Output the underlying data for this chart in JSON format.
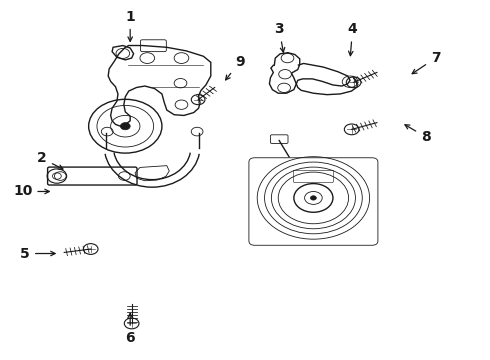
{
  "bg_color": "#ffffff",
  "line_color": "#1a1a1a",
  "lw_main": 1.0,
  "lw_thin": 0.6,
  "label_fontsize": 10,
  "label_fontweight": "bold",
  "labels": [
    {
      "text": "1",
      "xt": 0.265,
      "yt": 0.955,
      "xa": 0.265,
      "ya": 0.875
    },
    {
      "text": "2",
      "xt": 0.085,
      "yt": 0.56,
      "xa": 0.135,
      "ya": 0.525
    },
    {
      "text": "3",
      "xt": 0.57,
      "yt": 0.92,
      "xa": 0.58,
      "ya": 0.845
    },
    {
      "text": "4",
      "xt": 0.72,
      "yt": 0.92,
      "xa": 0.715,
      "ya": 0.835
    },
    {
      "text": "5",
      "xt": 0.05,
      "yt": 0.295,
      "xa": 0.12,
      "ya": 0.295
    },
    {
      "text": "6",
      "xt": 0.265,
      "yt": 0.06,
      "xa": 0.265,
      "ya": 0.14
    },
    {
      "text": "7",
      "xt": 0.89,
      "yt": 0.84,
      "xa": 0.835,
      "ya": 0.79
    },
    {
      "text": "8",
      "xt": 0.87,
      "yt": 0.62,
      "xa": 0.82,
      "ya": 0.66
    },
    {
      "text": "9",
      "xt": 0.49,
      "yt": 0.83,
      "xa": 0.455,
      "ya": 0.77
    },
    {
      "text": "10",
      "xt": 0.045,
      "yt": 0.468,
      "xa": 0.108,
      "ya": 0.468
    }
  ]
}
